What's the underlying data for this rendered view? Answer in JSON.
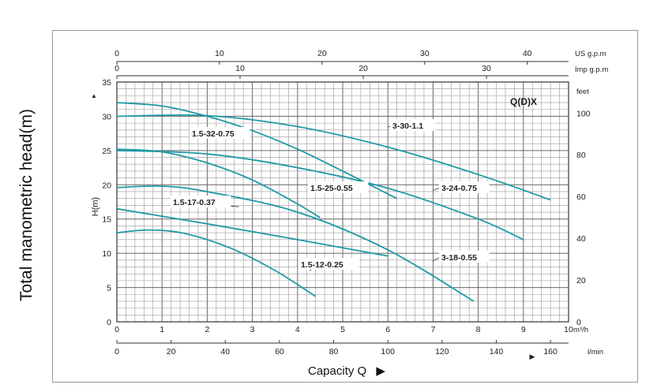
{
  "outer_ylabel": "Total manometric head(m)",
  "xtitle": "Capacity Q",
  "chart_data": {
    "type": "line",
    "title": "Q(D)X",
    "ylabel": "H(m)",
    "xunit": "m³/h",
    "ylim": [
      0,
      35
    ],
    "xlim": [
      0,
      10
    ],
    "y_ticks": [
      0,
      5,
      10,
      15,
      20,
      25,
      30,
      35
    ],
    "x_ticks": [
      0,
      1,
      2,
      3,
      4,
      5,
      6,
      7,
      8,
      9,
      10
    ],
    "secondary_axes": {
      "lmin": {
        "unit": "l/min",
        "factor": 16.6667,
        "ticks": [
          0,
          20,
          40,
          60,
          80,
          100,
          120,
          140,
          160
        ]
      },
      "us_gpm": {
        "unit": "US g.p.m",
        "factor": 4.4029,
        "ticks": [
          0,
          10,
          20,
          30,
          40
        ]
      },
      "imp_gpm": {
        "unit": "Imp g.p.m",
        "factor": 3.6662,
        "ticks": [
          0,
          10,
          20,
          30
        ]
      },
      "feet": {
        "unit": "feet",
        "factor": 3.2808,
        "ticks": [
          0,
          20,
          40,
          60,
          80,
          100
        ]
      }
    },
    "grid": true,
    "line_color": "#1f9aa6",
    "series": [
      {
        "name": "3-30-1.1",
        "x": [
          0,
          2,
          4,
          6,
          8,
          9.6
        ],
        "y": [
          30.0,
          30.1,
          28.5,
          25.5,
          21.5,
          17.8
        ],
        "label_at": [
          6.0,
          28.4
        ]
      },
      {
        "name": "1.5-32-0.75",
        "x": [
          0,
          1,
          2,
          3,
          4,
          5,
          6.2
        ],
        "y": [
          32.0,
          31.5,
          30.0,
          27.9,
          25.2,
          22.0,
          18.0
        ],
        "label_at": [
          2.8,
          27.7
        ]
      },
      {
        "name": "3-24-0.75",
        "x": [
          0,
          2,
          4,
          6,
          8,
          9
        ],
        "y": [
          25.0,
          24.5,
          22.5,
          19.5,
          15.0,
          12.0
        ],
        "label_at": [
          7.0,
          19.2
        ]
      },
      {
        "name": "1.5-25-0.55",
        "x": [
          0,
          1,
          2,
          3,
          4,
          4.5
        ],
        "y": [
          25.2,
          24.8,
          23.2,
          20.7,
          17.2,
          15.2
        ],
        "label_at": [
          4.3,
          19.0
        ]
      },
      {
        "name": "3-18-0.55",
        "x": [
          0,
          1,
          2,
          4,
          6,
          7.9
        ],
        "y": [
          19.6,
          19.8,
          19.0,
          16.0,
          10.5,
          3.0
        ],
        "label_at": [
          7.0,
          8.9
        ]
      },
      {
        "name": "1.5-17-0.37",
        "x": [
          0,
          2,
          4,
          6
        ],
        "y": [
          16.5,
          14.3,
          12.0,
          9.6
        ],
        "label_at": [
          2.7,
          16.8
        ]
      },
      {
        "name": "1.5-12-0.25",
        "x": [
          0,
          0.7,
          1.5,
          2.5,
          3.5,
          4.4
        ],
        "y": [
          13.0,
          13.4,
          12.9,
          10.8,
          7.5,
          3.7
        ],
        "label_at": [
          4.3,
          7.5
        ]
      }
    ]
  }
}
